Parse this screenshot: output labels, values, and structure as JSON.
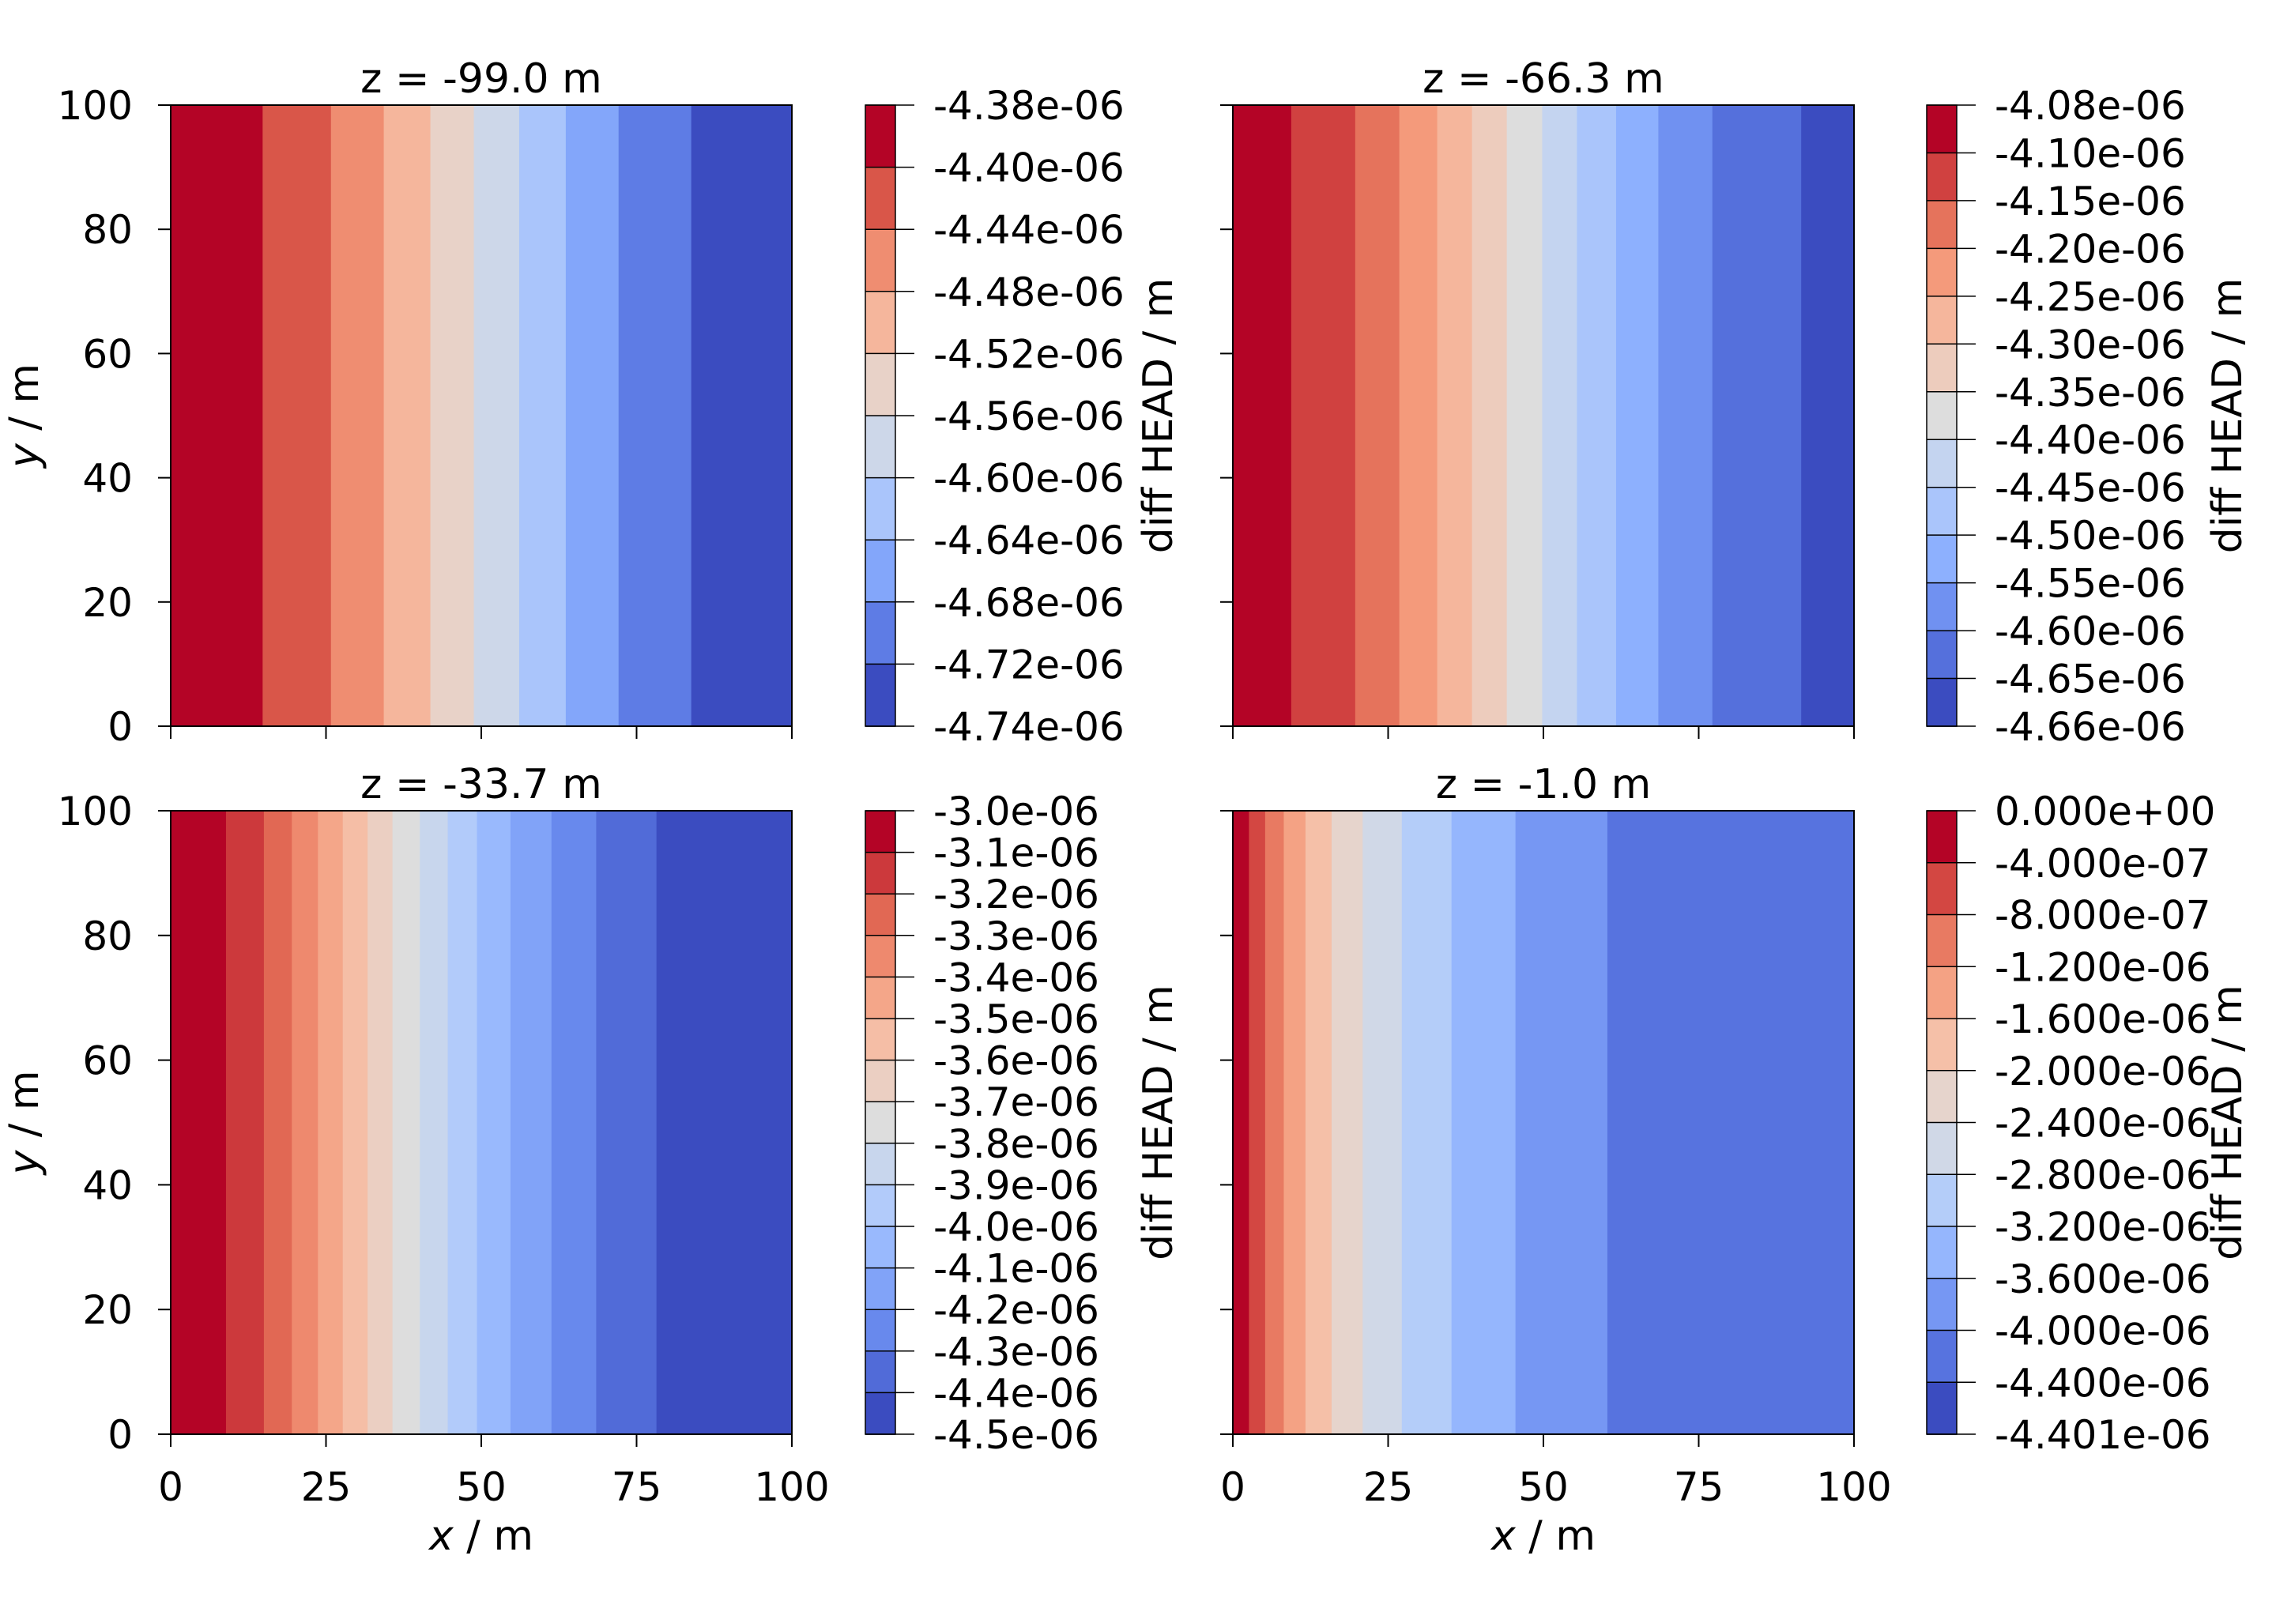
{
  "chart_data": [
    {
      "type": "heatmap",
      "title": "z = -99.0 m",
      "xlabel": "",
      "ylabel": "y / m",
      "xlim": [
        0,
        100
      ],
      "ylim": [
        0,
        100
      ],
      "xticks": [
        "0",
        "25",
        "50",
        "75",
        "100"
      ],
      "yticks": [
        "0",
        "20",
        "40",
        "60",
        "80",
        "100"
      ],
      "show_xticklabels": false,
      "show_yticklabels": true,
      "colorbar_label": "diff HEAD / m",
      "levels": [
        "-4.38e-06",
        "-4.40e-06",
        "-4.44e-06",
        "-4.48e-06",
        "-4.52e-06",
        "-4.56e-06",
        "-4.60e-06",
        "-4.64e-06",
        "-4.68e-06",
        "-4.72e-06",
        "-4.74e-06"
      ],
      "contour_x_boundaries": [
        14.8,
        25.8,
        34.3,
        41.8,
        48.8,
        56.1,
        63.6,
        72.1,
        83.8
      ],
      "colormap": "coolwarm"
    },
    {
      "type": "heatmap",
      "title": "z = -66.3 m",
      "xlabel": "",
      "ylabel": "",
      "xlim": [
        0,
        100
      ],
      "ylim": [
        0,
        100
      ],
      "xticks": [
        "0",
        "25",
        "50",
        "75",
        "100"
      ],
      "yticks": [
        "0",
        "20",
        "40",
        "60",
        "80",
        "100"
      ],
      "show_xticklabels": false,
      "show_yticklabels": false,
      "colorbar_label": "diff HEAD / m",
      "levels": [
        "-4.08e-06",
        "-4.10e-06",
        "-4.15e-06",
        "-4.20e-06",
        "-4.25e-06",
        "-4.30e-06",
        "-4.35e-06",
        "-4.40e-06",
        "-4.45e-06",
        "-4.50e-06",
        "-4.55e-06",
        "-4.60e-06",
        "-4.65e-06",
        "-4.66e-06"
      ],
      "contour_x_boundaries": [
        9.4,
        19.7,
        26.8,
        32.9,
        38.5,
        44.1,
        49.8,
        55.4,
        61.7,
        68.5,
        77.2,
        91.5
      ],
      "colormap": "coolwarm"
    },
    {
      "type": "heatmap",
      "title": "z = -33.7 m",
      "xlabel": "x / m",
      "ylabel": "y / m",
      "xlim": [
        0,
        100
      ],
      "ylim": [
        0,
        100
      ],
      "xticks": [
        "0",
        "25",
        "50",
        "75",
        "100"
      ],
      "yticks": [
        "0",
        "20",
        "40",
        "60",
        "80",
        "100"
      ],
      "show_xticklabels": true,
      "show_yticklabels": true,
      "colorbar_label": "diff HEAD / m",
      "levels": [
        "-3.0e-06",
        "-3.1e-06",
        "-3.2e-06",
        "-3.3e-06",
        "-3.4e-06",
        "-3.5e-06",
        "-3.6e-06",
        "-3.7e-06",
        "-3.8e-06",
        "-3.9e-06",
        "-4.0e-06",
        "-4.1e-06",
        "-4.2e-06",
        "-4.3e-06",
        "-4.4e-06",
        "-4.5e-06"
      ],
      "contour_x_boundaries": [
        8.9,
        15.0,
        19.5,
        23.7,
        27.7,
        31.7,
        35.7,
        40.1,
        44.6,
        49.3,
        54.7,
        61.3,
        68.5,
        78.2
      ],
      "colormap": "coolwarm"
    },
    {
      "type": "heatmap",
      "title": "z = -1.0 m",
      "xlabel": "x / m",
      "ylabel": "",
      "xlim": [
        0,
        100
      ],
      "ylim": [
        0,
        100
      ],
      "xticks": [
        "0",
        "25",
        "50",
        "75",
        "100"
      ],
      "yticks": [
        "0",
        "20",
        "40",
        "60",
        "80",
        "100"
      ],
      "show_xticklabels": true,
      "show_yticklabels": false,
      "colorbar_label": "diff HEAD / m",
      "levels": [
        "0.000e+00",
        "-4.000e-07",
        "-8.000e-07",
        "-1.200e-06",
        "-1.600e-06",
        "-2.000e-06",
        "-2.400e-06",
        "-2.800e-06",
        "-3.200e-06",
        "-3.600e-06",
        "-4.000e-06",
        "-4.400e-06",
        "-4.401e-06"
      ],
      "contour_x_boundaries": [
        2.6,
        5.2,
        8.2,
        11.7,
        15.9,
        20.9,
        27.2,
        35.2,
        45.5,
        60.3
      ],
      "colormap": "coolwarm"
    }
  ]
}
